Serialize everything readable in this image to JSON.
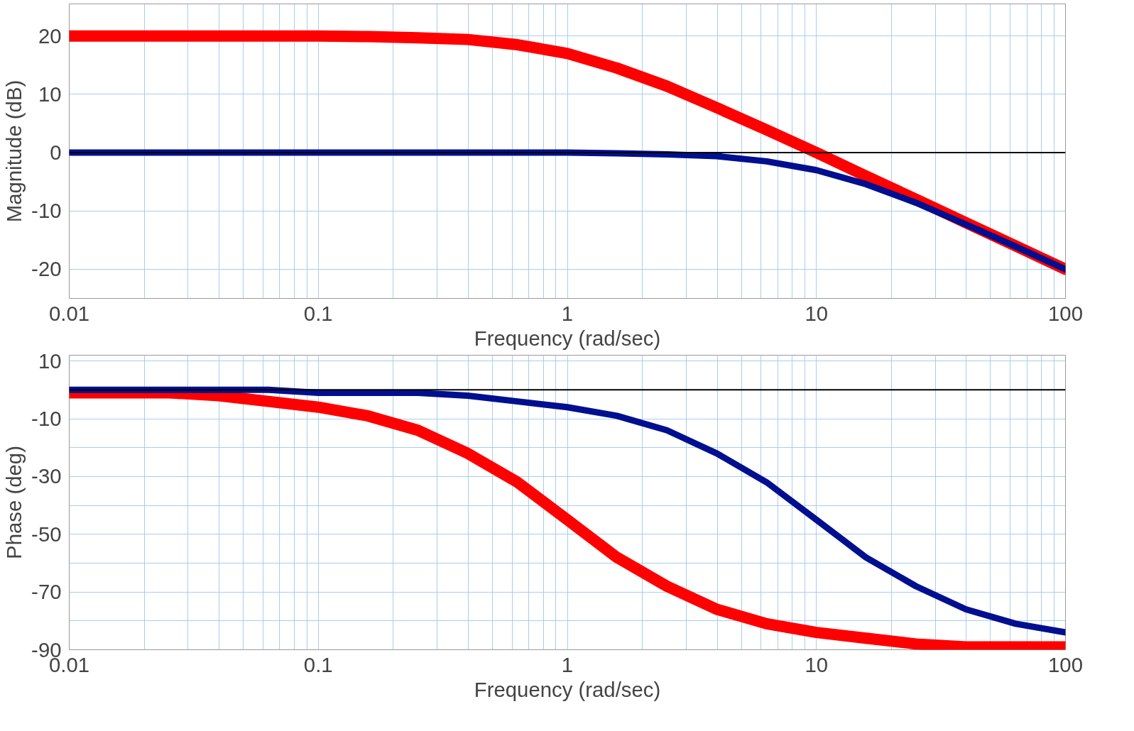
{
  "chart_data": [
    {
      "type": "line",
      "xlabel": "Frequency (rad/sec)",
      "ylabel": "Magnitude (dB)",
      "log": "x",
      "grid": true,
      "xlim": [
        0.01,
        100
      ],
      "xticks": [
        0.01,
        0.1,
        1,
        10,
        100
      ],
      "ylim": [
        -25,
        25.5
      ],
      "yticks": [
        -20,
        -10,
        0,
        10,
        20
      ],
      "line_style": "solid",
      "marker": "none",
      "x": [
        0.01,
        0.0158,
        0.0251,
        0.0398,
        0.0631,
        0.1,
        0.158,
        0.251,
        0.398,
        0.631,
        1,
        1.58,
        2.51,
        3.98,
        6.31,
        10,
        15.8,
        25.1,
        39.8,
        63.1,
        100
      ],
      "series": [
        {
          "color": "#ff0000",
          "values": [
            20,
            20,
            20,
            20,
            20,
            20,
            19.9,
            19.7,
            19.4,
            18.5,
            17,
            14.5,
            11.4,
            7.7,
            3.9,
            0,
            -4,
            -8,
            -12,
            -16,
            -20
          ]
        },
        {
          "color": "#000f8f",
          "values": [
            0,
            0,
            0,
            0,
            0,
            0,
            0,
            0,
            0,
            0,
            0,
            -0.1,
            -0.3,
            -0.6,
            -1.5,
            -3,
            -5.4,
            -8.6,
            -12.3,
            -16.1,
            -20
          ]
        }
      ],
      "ref_lines": [
        {
          "axis": "y",
          "value": 0,
          "color": "#000000"
        }
      ]
    },
    {
      "type": "line",
      "xlabel": "Frequency (rad/sec)",
      "ylabel": "Phase (deg)",
      "log": "x",
      "grid": true,
      "xlim": [
        0.01,
        100
      ],
      "xticks": [
        0.01,
        0.1,
        1,
        10,
        100
      ],
      "ylim": [
        -90,
        12
      ],
      "yticks": [
        -90,
        {
          "value": -80,
          "label": null
        },
        -70,
        {
          "value": -60,
          "label": null
        },
        -50,
        {
          "value": -40,
          "label": null
        },
        -30,
        {
          "value": -20,
          "label": null
        },
        -10,
        {
          "value": 0,
          "label": null
        },
        10
      ],
      "line_style": "solid",
      "marker": "none",
      "x": [
        0.01,
        0.0158,
        0.0251,
        0.0398,
        0.0631,
        0.1,
        0.158,
        0.251,
        0.398,
        0.631,
        1,
        1.58,
        2.51,
        3.98,
        6.31,
        10,
        15.8,
        25.1,
        39.8,
        63.1,
        100
      ],
      "series": [
        {
          "color": "#ff0000",
          "values": [
            -1,
            -1,
            -1,
            -2,
            -4,
            -6,
            -9,
            -14,
            -22,
            -32,
            -45,
            -58,
            -68,
            -76,
            -81,
            -84,
            -86,
            -88,
            -89,
            -89,
            -89
          ]
        },
        {
          "color": "#000f8f",
          "values": [
            0,
            0,
            0,
            0,
            0,
            -1,
            -1,
            -1,
            -2,
            -4,
            -6,
            -9,
            -14,
            -22,
            -32,
            -45,
            -58,
            -68,
            -76,
            -81,
            -84
          ]
        }
      ],
      "ref_lines": [
        {
          "axis": "y",
          "value": 0,
          "color": "#000000"
        }
      ]
    }
  ]
}
